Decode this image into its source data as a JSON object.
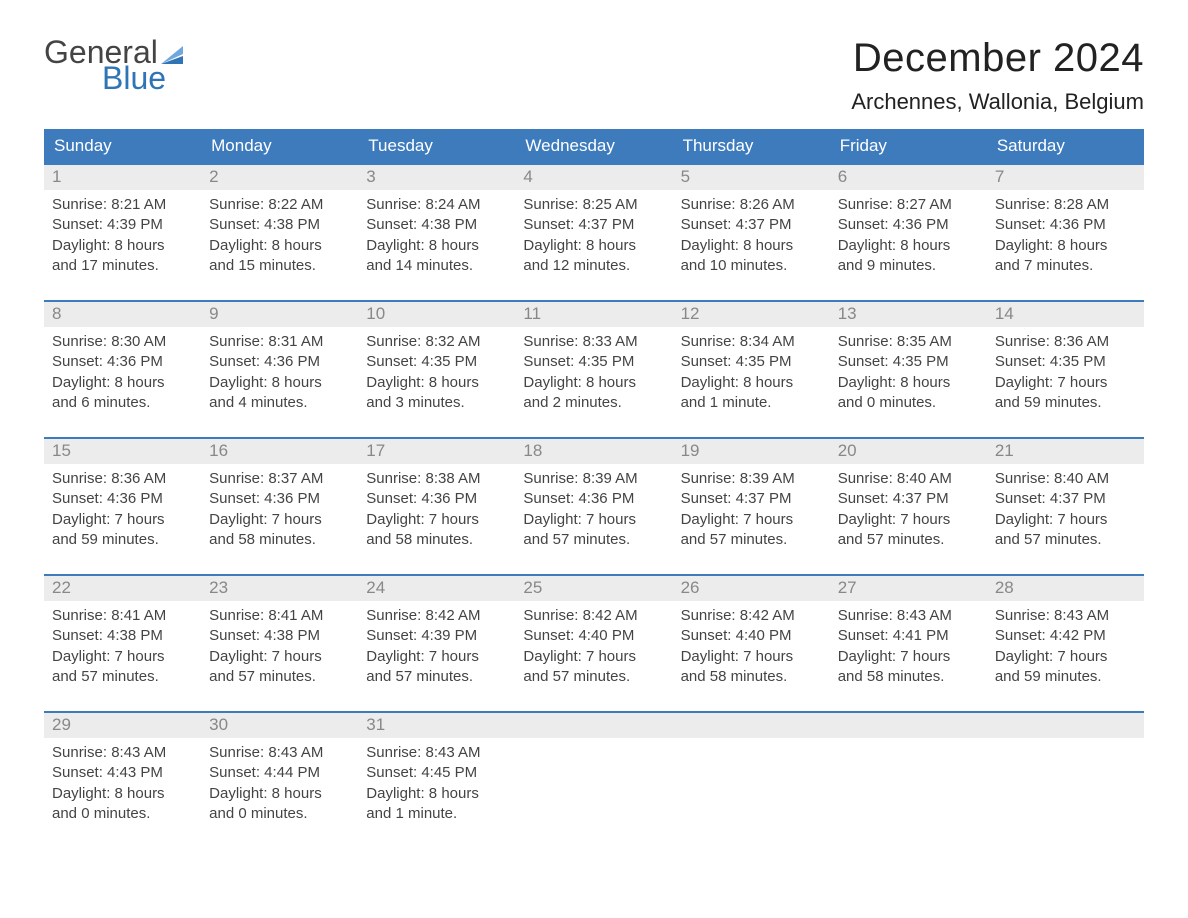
{
  "logo": {
    "general": "General",
    "blue": "Blue",
    "flag_color": "#2f75b5"
  },
  "title": "December 2024",
  "location": "Archennes, Wallonia, Belgium",
  "colors": {
    "header_bg": "#3d7bbd",
    "header_text": "#ffffff",
    "daynum_bg": "#ececec",
    "daynum_text": "#888888",
    "week_border": "#3d7bbd",
    "body_text": "#444444",
    "background": "#ffffff"
  },
  "typography": {
    "title_fontsize": 40,
    "location_fontsize": 22,
    "dow_fontsize": 17,
    "daynum_fontsize": 17,
    "detail_fontsize": 15
  },
  "days_of_week": [
    "Sunday",
    "Monday",
    "Tuesday",
    "Wednesday",
    "Thursday",
    "Friday",
    "Saturday"
  ],
  "weeks": [
    [
      {
        "n": "1",
        "sr": "Sunrise: 8:21 AM",
        "ss": "Sunset: 4:39 PM",
        "d1": "Daylight: 8 hours",
        "d2": "and 17 minutes."
      },
      {
        "n": "2",
        "sr": "Sunrise: 8:22 AM",
        "ss": "Sunset: 4:38 PM",
        "d1": "Daylight: 8 hours",
        "d2": "and 15 minutes."
      },
      {
        "n": "3",
        "sr": "Sunrise: 8:24 AM",
        "ss": "Sunset: 4:38 PM",
        "d1": "Daylight: 8 hours",
        "d2": "and 14 minutes."
      },
      {
        "n": "4",
        "sr": "Sunrise: 8:25 AM",
        "ss": "Sunset: 4:37 PM",
        "d1": "Daylight: 8 hours",
        "d2": "and 12 minutes."
      },
      {
        "n": "5",
        "sr": "Sunrise: 8:26 AM",
        "ss": "Sunset: 4:37 PM",
        "d1": "Daylight: 8 hours",
        "d2": "and 10 minutes."
      },
      {
        "n": "6",
        "sr": "Sunrise: 8:27 AM",
        "ss": "Sunset: 4:36 PM",
        "d1": "Daylight: 8 hours",
        "d2": "and 9 minutes."
      },
      {
        "n": "7",
        "sr": "Sunrise: 8:28 AM",
        "ss": "Sunset: 4:36 PM",
        "d1": "Daylight: 8 hours",
        "d2": "and 7 minutes."
      }
    ],
    [
      {
        "n": "8",
        "sr": "Sunrise: 8:30 AM",
        "ss": "Sunset: 4:36 PM",
        "d1": "Daylight: 8 hours",
        "d2": "and 6 minutes."
      },
      {
        "n": "9",
        "sr": "Sunrise: 8:31 AM",
        "ss": "Sunset: 4:36 PM",
        "d1": "Daylight: 8 hours",
        "d2": "and 4 minutes."
      },
      {
        "n": "10",
        "sr": "Sunrise: 8:32 AM",
        "ss": "Sunset: 4:35 PM",
        "d1": "Daylight: 8 hours",
        "d2": "and 3 minutes."
      },
      {
        "n": "11",
        "sr": "Sunrise: 8:33 AM",
        "ss": "Sunset: 4:35 PM",
        "d1": "Daylight: 8 hours",
        "d2": "and 2 minutes."
      },
      {
        "n": "12",
        "sr": "Sunrise: 8:34 AM",
        "ss": "Sunset: 4:35 PM",
        "d1": "Daylight: 8 hours",
        "d2": "and 1 minute."
      },
      {
        "n": "13",
        "sr": "Sunrise: 8:35 AM",
        "ss": "Sunset: 4:35 PM",
        "d1": "Daylight: 8 hours",
        "d2": "and 0 minutes."
      },
      {
        "n": "14",
        "sr": "Sunrise: 8:36 AM",
        "ss": "Sunset: 4:35 PM",
        "d1": "Daylight: 7 hours",
        "d2": "and 59 minutes."
      }
    ],
    [
      {
        "n": "15",
        "sr": "Sunrise: 8:36 AM",
        "ss": "Sunset: 4:36 PM",
        "d1": "Daylight: 7 hours",
        "d2": "and 59 minutes."
      },
      {
        "n": "16",
        "sr": "Sunrise: 8:37 AM",
        "ss": "Sunset: 4:36 PM",
        "d1": "Daylight: 7 hours",
        "d2": "and 58 minutes."
      },
      {
        "n": "17",
        "sr": "Sunrise: 8:38 AM",
        "ss": "Sunset: 4:36 PM",
        "d1": "Daylight: 7 hours",
        "d2": "and 58 minutes."
      },
      {
        "n": "18",
        "sr": "Sunrise: 8:39 AM",
        "ss": "Sunset: 4:36 PM",
        "d1": "Daylight: 7 hours",
        "d2": "and 57 minutes."
      },
      {
        "n": "19",
        "sr": "Sunrise: 8:39 AM",
        "ss": "Sunset: 4:37 PM",
        "d1": "Daylight: 7 hours",
        "d2": "and 57 minutes."
      },
      {
        "n": "20",
        "sr": "Sunrise: 8:40 AM",
        "ss": "Sunset: 4:37 PM",
        "d1": "Daylight: 7 hours",
        "d2": "and 57 minutes."
      },
      {
        "n": "21",
        "sr": "Sunrise: 8:40 AM",
        "ss": "Sunset: 4:37 PM",
        "d1": "Daylight: 7 hours",
        "d2": "and 57 minutes."
      }
    ],
    [
      {
        "n": "22",
        "sr": "Sunrise: 8:41 AM",
        "ss": "Sunset: 4:38 PM",
        "d1": "Daylight: 7 hours",
        "d2": "and 57 minutes."
      },
      {
        "n": "23",
        "sr": "Sunrise: 8:41 AM",
        "ss": "Sunset: 4:38 PM",
        "d1": "Daylight: 7 hours",
        "d2": "and 57 minutes."
      },
      {
        "n": "24",
        "sr": "Sunrise: 8:42 AM",
        "ss": "Sunset: 4:39 PM",
        "d1": "Daylight: 7 hours",
        "d2": "and 57 minutes."
      },
      {
        "n": "25",
        "sr": "Sunrise: 8:42 AM",
        "ss": "Sunset: 4:40 PM",
        "d1": "Daylight: 7 hours",
        "d2": "and 57 minutes."
      },
      {
        "n": "26",
        "sr": "Sunrise: 8:42 AM",
        "ss": "Sunset: 4:40 PM",
        "d1": "Daylight: 7 hours",
        "d2": "and 58 minutes."
      },
      {
        "n": "27",
        "sr": "Sunrise: 8:43 AM",
        "ss": "Sunset: 4:41 PM",
        "d1": "Daylight: 7 hours",
        "d2": "and 58 minutes."
      },
      {
        "n": "28",
        "sr": "Sunrise: 8:43 AM",
        "ss": "Sunset: 4:42 PM",
        "d1": "Daylight: 7 hours",
        "d2": "and 59 minutes."
      }
    ],
    [
      {
        "n": "29",
        "sr": "Sunrise: 8:43 AM",
        "ss": "Sunset: 4:43 PM",
        "d1": "Daylight: 8 hours",
        "d2": "and 0 minutes."
      },
      {
        "n": "30",
        "sr": "Sunrise: 8:43 AM",
        "ss": "Sunset: 4:44 PM",
        "d1": "Daylight: 8 hours",
        "d2": "and 0 minutes."
      },
      {
        "n": "31",
        "sr": "Sunrise: 8:43 AM",
        "ss": "Sunset: 4:45 PM",
        "d1": "Daylight: 8 hours",
        "d2": "and 1 minute."
      },
      {
        "n": "",
        "sr": "",
        "ss": "",
        "d1": "",
        "d2": ""
      },
      {
        "n": "",
        "sr": "",
        "ss": "",
        "d1": "",
        "d2": ""
      },
      {
        "n": "",
        "sr": "",
        "ss": "",
        "d1": "",
        "d2": ""
      },
      {
        "n": "",
        "sr": "",
        "ss": "",
        "d1": "",
        "d2": ""
      }
    ]
  ]
}
